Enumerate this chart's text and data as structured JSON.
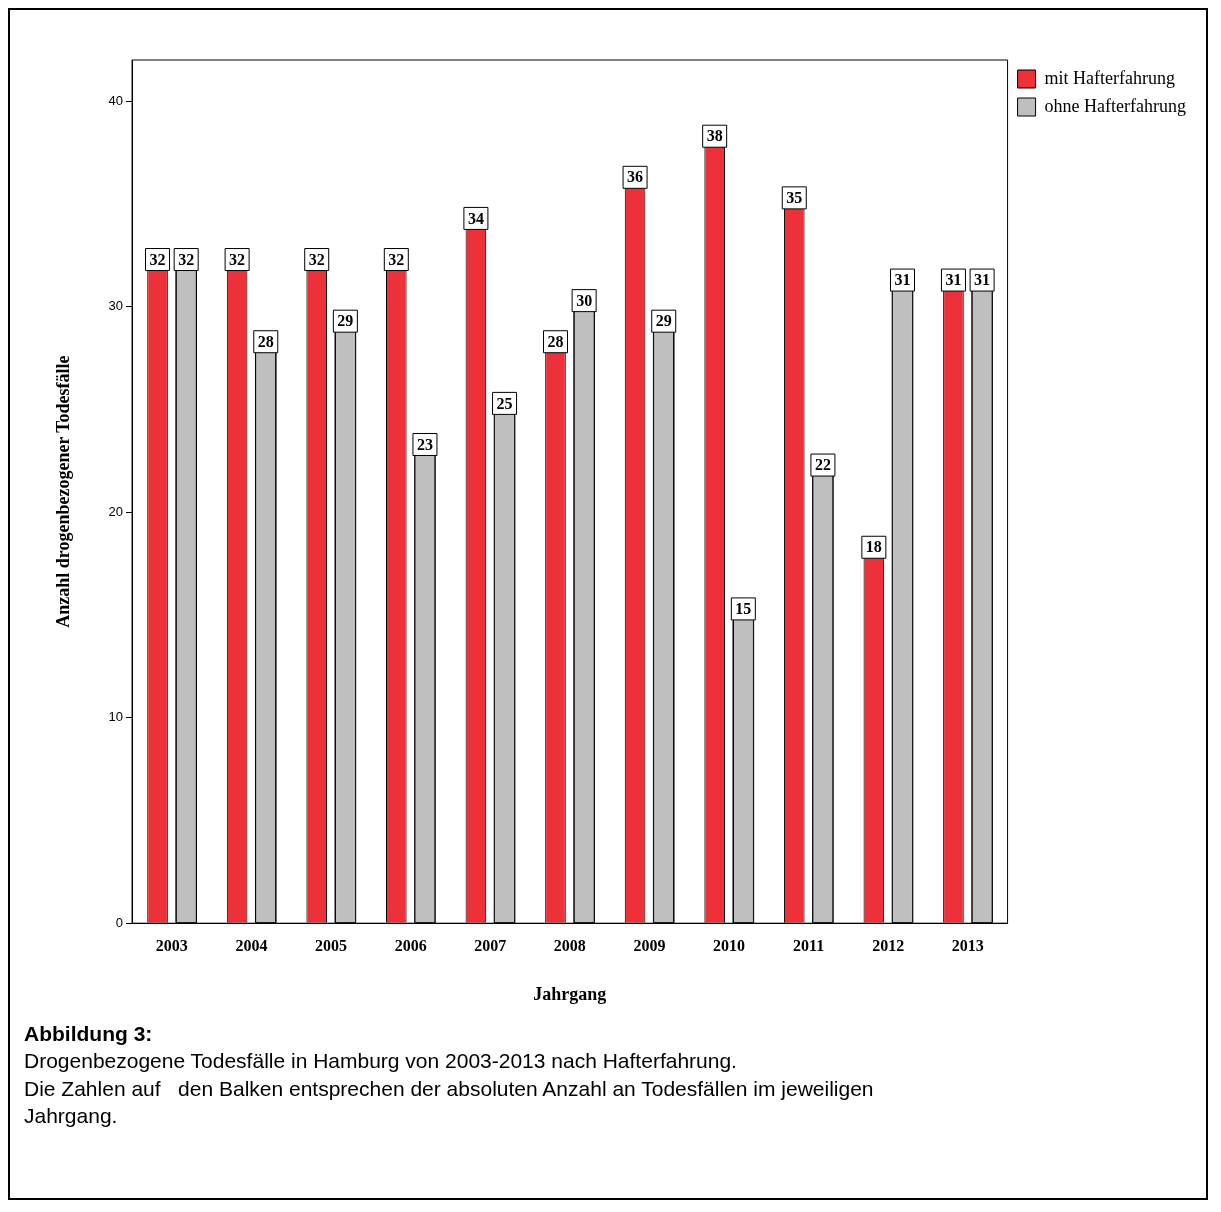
{
  "chart_data": {
    "type": "bar",
    "title": "Abbildung 3:",
    "xlabel": "Jahrgang",
    "ylabel": "Anzahl drogenbezogener Todesfälle",
    "categories": [
      "2003",
      "2004",
      "2005",
      "2006",
      "2007",
      "2008",
      "2009",
      "2010",
      "2011",
      "2012",
      "2013"
    ],
    "series": [
      {
        "name": "mit Hafterfahrung",
        "color": "#ee3039",
        "values": [
          32,
          32,
          32,
          32,
          34,
          28,
          36,
          38,
          35,
          18,
          31
        ]
      },
      {
        "name": "ohne Hafterfahrung",
        "color": "#bfbfbf",
        "values": [
          32,
          28,
          29,
          23,
          25,
          30,
          29,
          15,
          22,
          31,
          31
        ]
      }
    ],
    "ylim": [
      0,
      42
    ],
    "yticks": [
      0,
      10,
      20,
      30,
      40
    ],
    "grid": false,
    "legend": "top right",
    "data_labels": true,
    "annotations": [
      "Drogenbezogene Todesfälle in Hamburg von 2003-2013 nach Hafterfahrung.",
      "Die Zahlen auf   den Balken entsprechen der absoluten Anzahl an Todesfällen im jeweiligen Jahrgang."
    ]
  }
}
